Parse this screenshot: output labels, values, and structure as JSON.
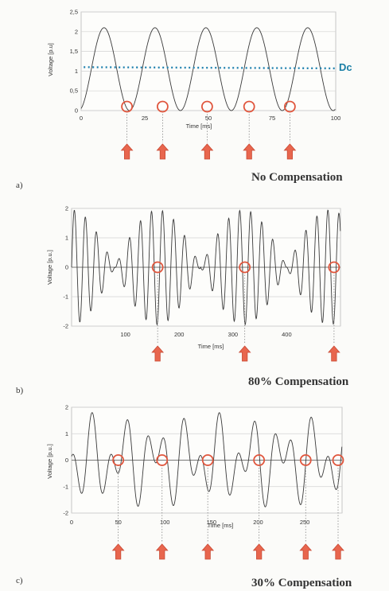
{
  "chart_data": [
    {
      "type": "line",
      "panel_label": "a)",
      "caption": "No Compensation",
      "xlabel": "Time [ms]",
      "ylabel": "Voltage [p.u]",
      "xlim": [
        0,
        100
      ],
      "ylim": [
        0,
        2.5
      ],
      "x_ticks": [
        "0",
        "25",
        "50",
        "75",
        "100"
      ],
      "y_ticks": [
        "0",
        "0,5",
        "1",
        "1,5",
        "2",
        "2,5"
      ],
      "series": [
        {
          "values": "1.05 + 1.05*cos(2*pi*50*t)",
          "period_ms": 20,
          "mean": 1.05,
          "amplitude": 1.05
        }
      ],
      "dc_level": 1.1,
      "annotations": {
        "dc_label": "Dc",
        "zero_markers_ms": [
          18,
          32,
          49.5,
          66,
          82
        ]
      }
    },
    {
      "type": "line",
      "panel_label": "b)",
      "caption": "80% Compensation",
      "xlabel": "Time [ms]",
      "ylabel": "Voltage [p.u.]",
      "xlim": [
        0,
        500
      ],
      "ylim": [
        -2,
        2
      ],
      "x_ticks": [
        "100",
        "200",
        "300",
        "400"
      ],
      "y_ticks": [
        "-2",
        "-1",
        "0",
        "1",
        "2"
      ],
      "series": [
        {
          "values": "2*|cos(pi*t/160)|*sin(2*pi*50*t)",
          "envelope_peak": 2.0,
          "envelope_nulls_ms": [
            160,
            320,
            480
          ]
        }
      ],
      "annotations": {
        "zero_markers_ms": [
          160,
          322,
          488
        ]
      }
    },
    {
      "type": "line",
      "panel_label": "c)",
      "caption": "30% Compensation",
      "xlabel": "Time [ms]",
      "ylabel": "Voltage [p.u.]",
      "xlim": [
        0,
        290
      ],
      "ylim": [
        -2,
        2
      ],
      "x_ticks": [
        "0",
        "50",
        "100",
        "150",
        "200",
        "250"
      ],
      "y_ticks": [
        "-2",
        "-1",
        "0",
        "1",
        "2"
      ],
      "series": [
        {
          "values": "cos(2*pi*50*t)+0.9*cos(2*pi*29*t)",
          "peak": 1.9
        }
      ],
      "annotations": {
        "zero_markers_ms": [
          50,
          97,
          146,
          201,
          251,
          304
        ]
      }
    }
  ]
}
